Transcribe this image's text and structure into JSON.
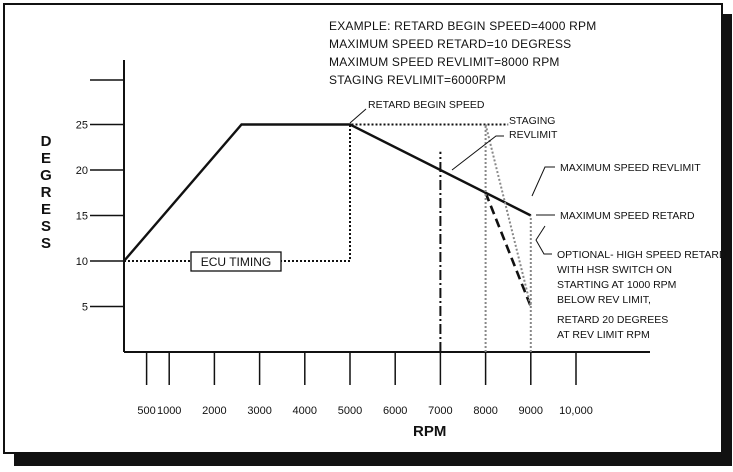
{
  "example_lines": [
    "EXAMPLE: RETARD BEGIN SPEED=4000 RPM",
    "MAXIMUM SPEED RETARD=10 DEGRESS",
    "MAXIMUM SPEED REVLIMIT=8000 RPM",
    "STAGING REVLIMIT=6000RPM"
  ],
  "annotations": {
    "retard_begin_speed": "RETARD BEGIN SPEED",
    "staging_revlimit": [
      "STAGING",
      "REVLIMIT"
    ],
    "maximum_speed_revlimit": "MAXIMUM SPEED REVLIMIT",
    "maximum_speed_retard": "MAXIMUM SPEED RETARD",
    "optional_hsr": [
      "OPTIONAL- HIGH SPEED RETARD",
      "WITH HSR SWITCH ON",
      "STARTING AT 1000 RPM",
      "BELOW REV LIMIT,",
      "RETARD 20 DEGREES",
      "AT REV LIMIT RPM"
    ],
    "ecu_timing": "ECU TIMING"
  },
  "chart_data": {
    "type": "line",
    "xlabel": "RPM",
    "ylabel": "DEGRESS",
    "xlim": [
      0,
      11000
    ],
    "ylim": [
      0,
      30
    ],
    "x_ticks": [
      500,
      1000,
      2000,
      3000,
      4000,
      5000,
      6000,
      7000,
      8000,
      9000,
      10000
    ],
    "x_tick_labels": [
      "500",
      "1000",
      "2000",
      "3000",
      "4000",
      "5000",
      "6000",
      "7000",
      "8000",
      "9000",
      "10,000"
    ],
    "y_ticks": [
      5,
      10,
      15,
      20,
      25
    ],
    "y_tick_labels": [
      "5",
      "10",
      "15",
      "20",
      "25"
    ],
    "series": [
      {
        "style": "solid-bold",
        "x": [
          0,
          2600,
          5000,
          9000
        ],
        "y": [
          10,
          25,
          25,
          15
        ]
      },
      {
        "style": "dotted",
        "x": [
          0,
          5000,
          5000,
          8500
        ],
        "y": [
          10,
          10,
          25,
          25
        ]
      },
      {
        "style": "dashed-bold",
        "x": [
          8000,
          9000
        ],
        "y": [
          17.5,
          5
        ]
      },
      {
        "style": "dotted-gray",
        "x": [
          8000,
          9000
        ],
        "y": [
          25,
          5
        ]
      },
      {
        "style": "dotted-gray",
        "x": [
          8000,
          8000
        ],
        "y": [
          0,
          25
        ]
      },
      {
        "style": "dotted-gray",
        "x": [
          9000,
          9000
        ],
        "y": [
          0,
          15
        ]
      },
      {
        "style": "dashdot",
        "x": [
          7000,
          7000
        ],
        "y": [
          0,
          22
        ]
      }
    ]
  }
}
